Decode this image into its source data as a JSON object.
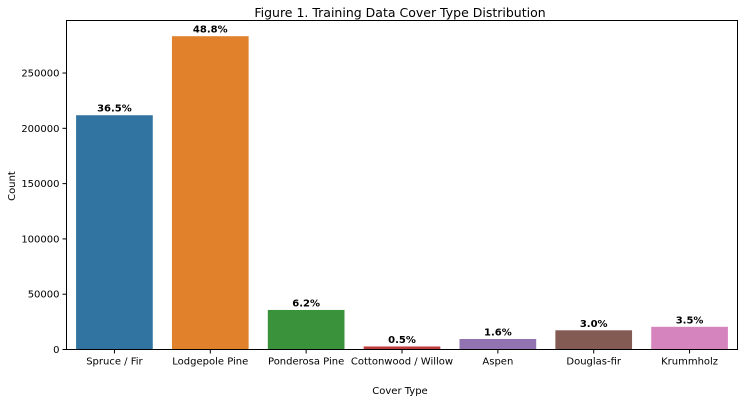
{
  "chart_data": {
    "type": "bar",
    "title": "Figure 1. Training Data Cover Type Distribution",
    "xlabel": "Cover Type",
    "ylabel": "Count",
    "categories": [
      "Spruce / Fir",
      "Lodgepole Pine",
      "Ponderosa Pine",
      "Cottonwood / Willow",
      "Aspen",
      "Douglas-fir",
      "Krummholz"
    ],
    "values": [
      211840,
      283301,
      35754,
      2747,
      9493,
      17367,
      20510
    ],
    "data_labels": [
      "36.5%",
      "48.8%",
      "6.2%",
      "0.5%",
      "1.6%",
      "3.0%",
      "3.5%"
    ],
    "colors": [
      "#3274a1",
      "#e1812c",
      "#3a923a",
      "#c03d3e",
      "#9372b2",
      "#845b53",
      "#d684bd"
    ],
    "ylim": [
      0,
      297500
    ],
    "yticks": [
      0,
      50000,
      100000,
      150000,
      200000,
      250000
    ],
    "grid": false,
    "legend": "none"
  }
}
